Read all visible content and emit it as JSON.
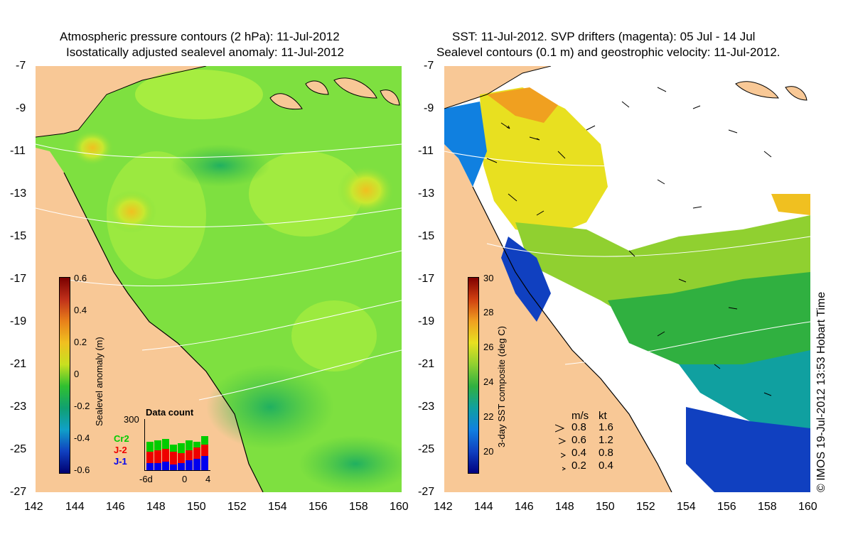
{
  "left_panel": {
    "title_line1": "Atmospheric pressure contours (2 hPa): 11-Jul-2012",
    "title_line2": "Isostatically adjusted sealevel anomaly: 11-Jul-2012",
    "colorbar": {
      "label": "Sealevel anomaly (m)",
      "ticks": [
        "0.6",
        "0.4",
        "0.2",
        "0",
        "-0.2",
        "-0.4",
        "-0.6"
      ],
      "colors": [
        "#7a0000",
        "#c0301a",
        "#e8801a",
        "#f0c020",
        "#c8e020",
        "#30c030",
        "#10a070",
        "#10a0c8",
        "#1040c0",
        "#000070"
      ]
    },
    "data_count": {
      "title": "Data count",
      "ymax_label": "300",
      "missions": [
        "Cr2",
        "J-2",
        "J-1"
      ],
      "mission_colors": [
        "#00cc00",
        "#ee0000",
        "#0000ee"
      ],
      "x_ticks": [
        "-6d",
        "0",
        "4"
      ]
    }
  },
  "right_panel": {
    "title_line1": "SST: 11-Jul-2012. SVP drifters (magenta): 05 Jul - 14 Jul",
    "title_line2": "Sealevel contours (0.1 m) and geostrophic velocity: 11-Jul-2012.",
    "colorbar": {
      "label": "3-day SST composite (deg C)",
      "ticks": [
        "30",
        "28",
        "26",
        "24",
        "22",
        "20"
      ],
      "colors": [
        "#800000",
        "#d04010",
        "#f0a020",
        "#e8e020",
        "#90d030",
        "#30b040",
        "#10a0a0",
        "#1080e0",
        "#1040c0",
        "#000080"
      ]
    },
    "velocity_legend": {
      "header_ms": "m/s",
      "header_kt": "kt",
      "rows": [
        {
          "ms": "0.8",
          "kt": "1.6"
        },
        {
          "ms": "0.6",
          "kt": "1.2"
        },
        {
          "ms": "0.4",
          "kt": "0.8"
        },
        {
          "ms": "0.2",
          "kt": "0.4"
        }
      ]
    }
  },
  "axes": {
    "lat_ticks": [
      "-7",
      "-9",
      "-11",
      "-13",
      "-15",
      "-17",
      "-19",
      "-21",
      "-23",
      "-25",
      "-27"
    ],
    "lon_ticks": [
      "142",
      "144",
      "146",
      "148",
      "150",
      "152",
      "154",
      "156",
      "158",
      "160"
    ]
  },
  "credit": "© IMOS 19-Jul-2012 13:53 Hobart Time",
  "colors": {
    "land": "#f8c896",
    "ocean_green": "#7ee040",
    "ocean_bright": "#b0f040"
  }
}
